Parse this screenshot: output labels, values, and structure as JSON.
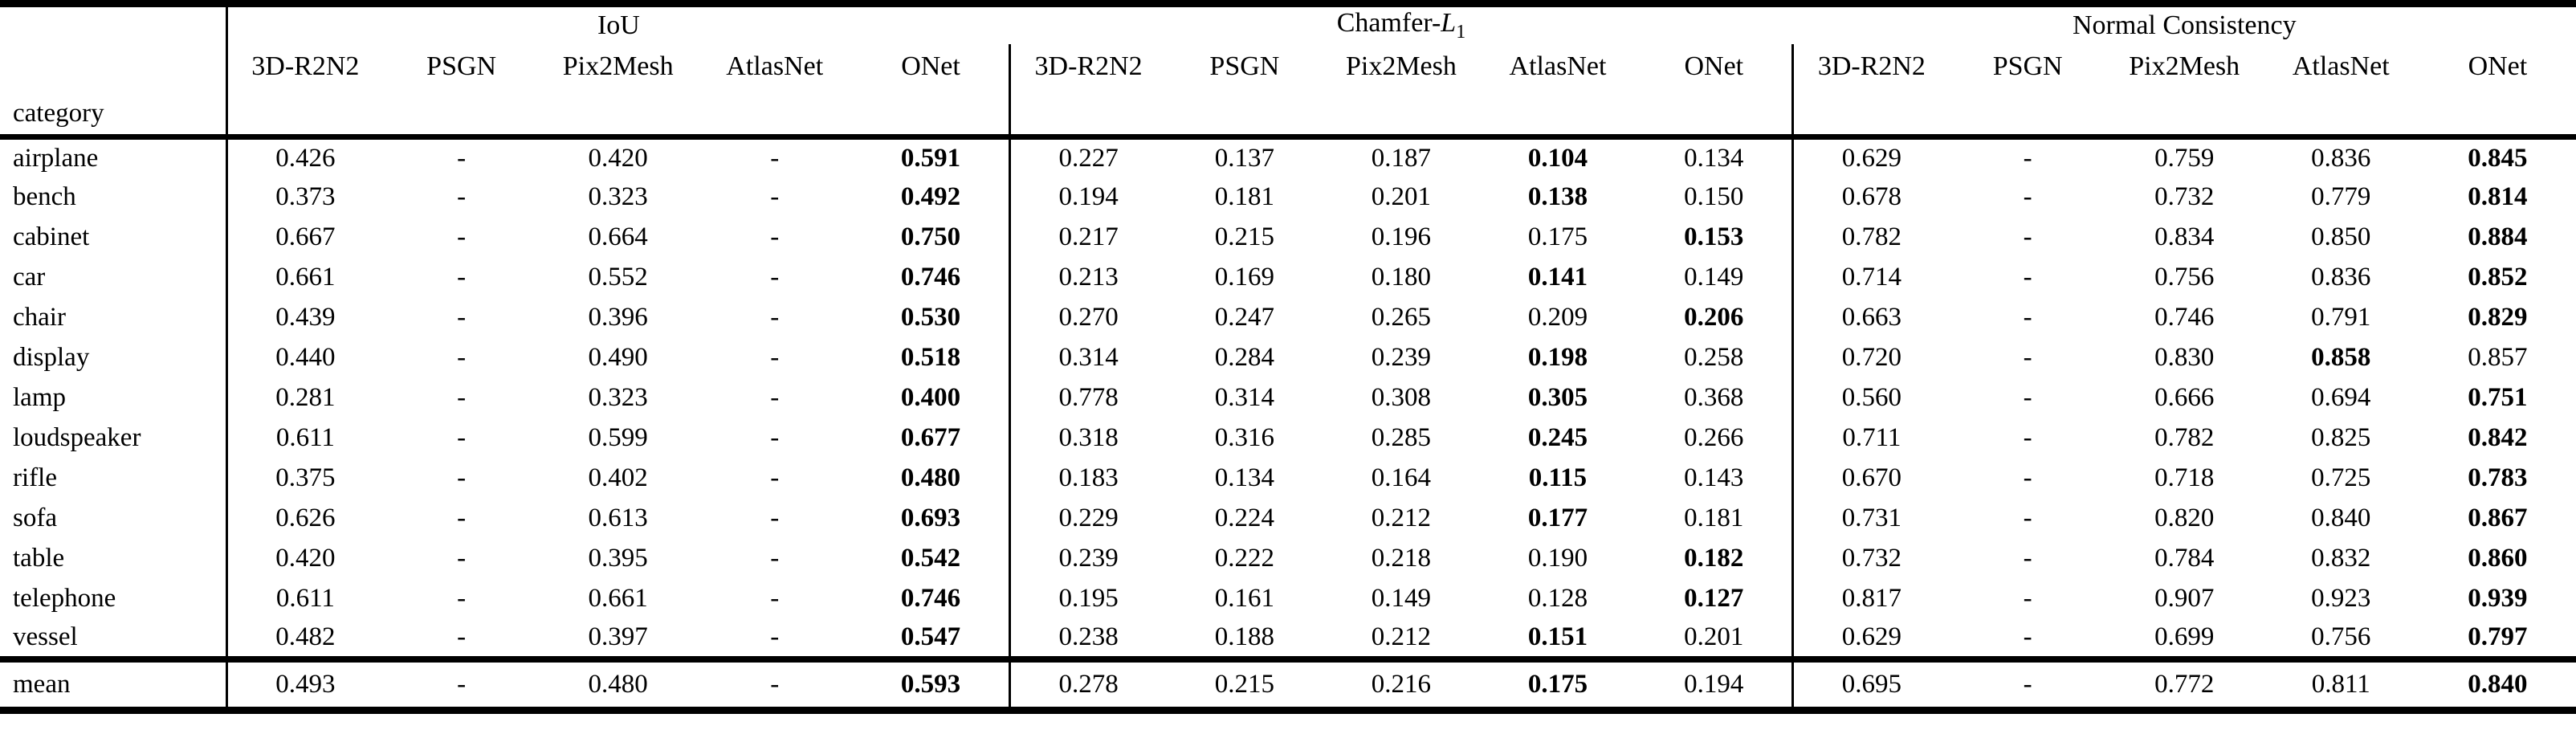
{
  "table": {
    "row_header_label": "category",
    "groups": [
      {
        "key": "iou",
        "title": "IoU",
        "columns": [
          "3D-R2N2",
          "PSGN",
          "Pix2Mesh",
          "AtlasNet",
          "ONet"
        ]
      },
      {
        "key": "chamfer_l1",
        "title_prefix": "Chamfer-",
        "title_variable": "L",
        "title_subscript": "1",
        "columns": [
          "3D-R2N2",
          "PSGN",
          "Pix2Mesh",
          "AtlasNet",
          "ONet"
        ]
      },
      {
        "key": "normal_consistency",
        "title": "Normal Consistency",
        "columns": [
          "3D-R2N2",
          "PSGN",
          "Pix2Mesh",
          "AtlasNet",
          "ONet"
        ]
      }
    ],
    "rows": [
      {
        "category": "airplane",
        "values": [
          [
            "0.426",
            "-",
            "0.420",
            "-",
            "0.591"
          ],
          [
            "0.227",
            "0.137",
            "0.187",
            "0.104",
            "0.134"
          ],
          [
            "0.629",
            "-",
            "0.759",
            "0.836",
            "0.845"
          ]
        ],
        "bold": [
          4,
          3,
          4
        ]
      },
      {
        "category": "bench",
        "values": [
          [
            "0.373",
            "-",
            "0.323",
            "-",
            "0.492"
          ],
          [
            "0.194",
            "0.181",
            "0.201",
            "0.138",
            "0.150"
          ],
          [
            "0.678",
            "-",
            "0.732",
            "0.779",
            "0.814"
          ]
        ],
        "bold": [
          4,
          3,
          4
        ]
      },
      {
        "category": "cabinet",
        "values": [
          [
            "0.667",
            "-",
            "0.664",
            "-",
            "0.750"
          ],
          [
            "0.217",
            "0.215",
            "0.196",
            "0.175",
            "0.153"
          ],
          [
            "0.782",
            "-",
            "0.834",
            "0.850",
            "0.884"
          ]
        ],
        "bold": [
          4,
          4,
          4
        ]
      },
      {
        "category": "car",
        "values": [
          [
            "0.661",
            "-",
            "0.552",
            "-",
            "0.746"
          ],
          [
            "0.213",
            "0.169",
            "0.180",
            "0.141",
            "0.149"
          ],
          [
            "0.714",
            "-",
            "0.756",
            "0.836",
            "0.852"
          ]
        ],
        "bold": [
          4,
          3,
          4
        ]
      },
      {
        "category": "chair",
        "values": [
          [
            "0.439",
            "-",
            "0.396",
            "-",
            "0.530"
          ],
          [
            "0.270",
            "0.247",
            "0.265",
            "0.209",
            "0.206"
          ],
          [
            "0.663",
            "-",
            "0.746",
            "0.791",
            "0.829"
          ]
        ],
        "bold": [
          4,
          4,
          4
        ]
      },
      {
        "category": "display",
        "values": [
          [
            "0.440",
            "-",
            "0.490",
            "-",
            "0.518"
          ],
          [
            "0.314",
            "0.284",
            "0.239",
            "0.198",
            "0.258"
          ],
          [
            "0.720",
            "-",
            "0.830",
            "0.858",
            "0.857"
          ]
        ],
        "bold": [
          4,
          3,
          3
        ]
      },
      {
        "category": "lamp",
        "values": [
          [
            "0.281",
            "-",
            "0.323",
            "-",
            "0.400"
          ],
          [
            "0.778",
            "0.314",
            "0.308",
            "0.305",
            "0.368"
          ],
          [
            "0.560",
            "-",
            "0.666",
            "0.694",
            "0.751"
          ]
        ],
        "bold": [
          4,
          3,
          4
        ]
      },
      {
        "category": "loudspeaker",
        "values": [
          [
            "0.611",
            "-",
            "0.599",
            "-",
            "0.677"
          ],
          [
            "0.318",
            "0.316",
            "0.285",
            "0.245",
            "0.266"
          ],
          [
            "0.711",
            "-",
            "0.782",
            "0.825",
            "0.842"
          ]
        ],
        "bold": [
          4,
          3,
          4
        ]
      },
      {
        "category": "rifle",
        "values": [
          [
            "0.375",
            "-",
            "0.402",
            "-",
            "0.480"
          ],
          [
            "0.183",
            "0.134",
            "0.164",
            "0.115",
            "0.143"
          ],
          [
            "0.670",
            "-",
            "0.718",
            "0.725",
            "0.783"
          ]
        ],
        "bold": [
          4,
          3,
          4
        ]
      },
      {
        "category": "sofa",
        "values": [
          [
            "0.626",
            "-",
            "0.613",
            "-",
            "0.693"
          ],
          [
            "0.229",
            "0.224",
            "0.212",
            "0.177",
            "0.181"
          ],
          [
            "0.731",
            "-",
            "0.820",
            "0.840",
            "0.867"
          ]
        ],
        "bold": [
          4,
          3,
          4
        ]
      },
      {
        "category": "table",
        "values": [
          [
            "0.420",
            "-",
            "0.395",
            "-",
            "0.542"
          ],
          [
            "0.239",
            "0.222",
            "0.218",
            "0.190",
            "0.182"
          ],
          [
            "0.732",
            "-",
            "0.784",
            "0.832",
            "0.860"
          ]
        ],
        "bold": [
          4,
          4,
          4
        ]
      },
      {
        "category": "telephone",
        "values": [
          [
            "0.611",
            "-",
            "0.661",
            "-",
            "0.746"
          ],
          [
            "0.195",
            "0.161",
            "0.149",
            "0.128",
            "0.127"
          ],
          [
            "0.817",
            "-",
            "0.907",
            "0.923",
            "0.939"
          ]
        ],
        "bold": [
          4,
          4,
          4
        ]
      },
      {
        "category": "vessel",
        "values": [
          [
            "0.482",
            "-",
            "0.397",
            "-",
            "0.547"
          ],
          [
            "0.238",
            "0.188",
            "0.212",
            "0.151",
            "0.201"
          ],
          [
            "0.629",
            "-",
            "0.699",
            "0.756",
            "0.797"
          ]
        ],
        "bold": [
          4,
          3,
          4
        ]
      }
    ],
    "mean_row": {
      "category": "mean",
      "values": [
        [
          "0.493",
          "-",
          "0.480",
          "-",
          "0.593"
        ],
        [
          "0.278",
          "0.215",
          "0.216",
          "0.175",
          "0.194"
        ],
        [
          "0.695",
          "-",
          "0.772",
          "0.811",
          "0.840"
        ]
      ],
      "bold": [
        4,
        3,
        4
      ]
    }
  }
}
